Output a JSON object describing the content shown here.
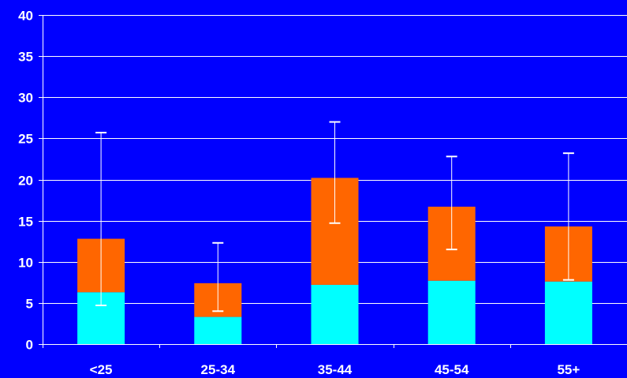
{
  "chart_data": {
    "type": "bar",
    "stacked": true,
    "categories": [
      "<25",
      "25-34",
      "35-44",
      "45-54",
      "55+"
    ],
    "series": [
      {
        "color": "#00ffff",
        "values": [
          6.3,
          3.3,
          7.2,
          7.7,
          7.6
        ]
      },
      {
        "color": "#ff6600",
        "values": [
          6.5,
          4.1,
          13.0,
          9.0,
          6.7
        ]
      }
    ],
    "error_bars": [
      {
        "low": 4.7,
        "high": 25.7
      },
      {
        "low": 4.0,
        "high": 12.3
      },
      {
        "low": 14.7,
        "high": 27.0
      },
      {
        "low": 11.5,
        "high": 22.8
      },
      {
        "low": 7.8,
        "high": 23.2
      }
    ],
    "yticks": [
      "0",
      "5",
      "10",
      "15",
      "20",
      "25",
      "30",
      "35",
      "40"
    ],
    "ylim": [
      0,
      40
    ],
    "grid": true,
    "background_color": "#0000ff",
    "line_color": "#ffffff",
    "title": "",
    "xlabel": "",
    "ylabel": ""
  }
}
